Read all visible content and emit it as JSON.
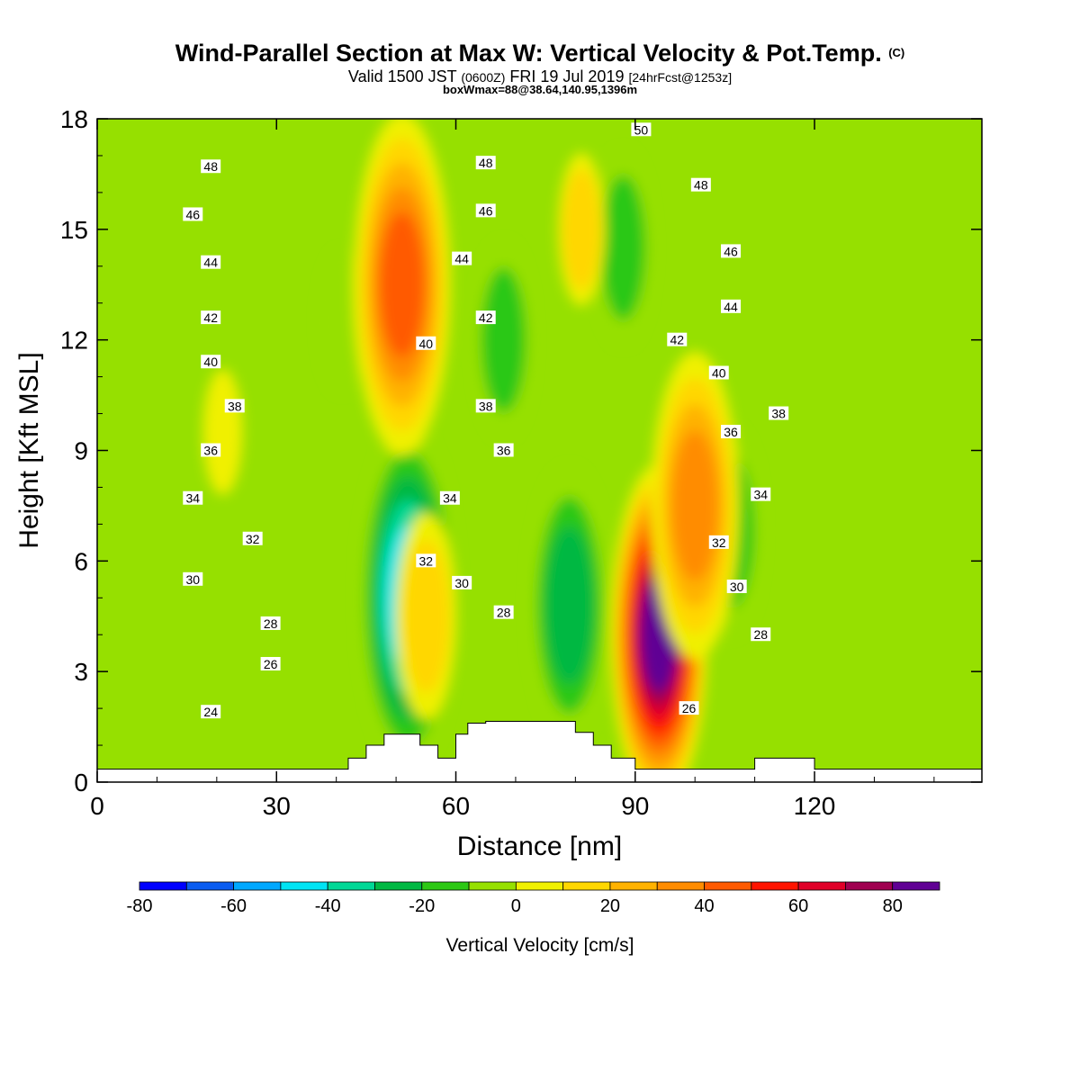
{
  "title": "Wind-Parallel Section at Max W: Vertical Velocity & Pot.Temp.",
  "title_unit": "(C)",
  "subtitle_a": "Valid 1500 JST",
  "subtitle_b": "(0600Z)",
  "subtitle_c": "FRI 19 Jul 2019",
  "subtitle_d": "[24hrFcst@1253z]",
  "subtitle2": "boxWmax=88@38.64,140.95,1396m",
  "chart_data": {
    "type": "heatmap",
    "xlabel": "Distance [nm]",
    "ylabel": "Height [Kft MSL]",
    "xlim": [
      0,
      148
    ],
    "ylim": [
      0,
      18
    ],
    "x_ticks": [
      "0",
      "30",
      "60",
      "90",
      "120"
    ],
    "x_tick_values": [
      0,
      30,
      60,
      90,
      120
    ],
    "y_ticks": [
      "0",
      "3",
      "6",
      "9",
      "12",
      "15",
      "18"
    ],
    "y_tick_values": [
      0,
      3,
      6,
      9,
      12,
      15,
      18
    ],
    "colorbar": {
      "label": "Vertical Velocity [cm/s]",
      "tick_labels": [
        "-80",
        "-60",
        "-40",
        "-20",
        "0",
        "20",
        "40",
        "60",
        "80"
      ],
      "tick_values": [
        -80,
        -60,
        -40,
        -20,
        0,
        20,
        40,
        60,
        80
      ],
      "range": [
        -80,
        90
      ],
      "colors": [
        "#0000ff",
        "#0a5cf0",
        "#00a8ff",
        "#00e4f4",
        "#00d896",
        "#00b843",
        "#2cc814",
        "#96e000",
        "#f0f000",
        "#ffd700",
        "#ffb200",
        "#ff8c00",
        "#ff5a00",
        "#ff1400",
        "#e00028",
        "#a00050",
        "#600094"
      ]
    },
    "updrafts": [
      {
        "x": 94,
        "y": 4.0,
        "w": 84
      },
      {
        "x": 100,
        "y": 7.5,
        "w": 35
      },
      {
        "x": 51,
        "y": 13.5,
        "w": 45
      },
      {
        "x": 55,
        "y": 4.5,
        "w": 20
      },
      {
        "x": 81,
        "y": 15.0,
        "w": 12
      },
      {
        "x": 21,
        "y": 9.5,
        "w": 8
      }
    ],
    "downdrafts": [
      {
        "x": 52,
        "y": 5.0,
        "w": -45
      },
      {
        "x": 79,
        "y": 4.8,
        "w": -30
      },
      {
        "x": 106,
        "y": 6.8,
        "w": -20
      },
      {
        "x": 68,
        "y": 12.0,
        "w": -18
      },
      {
        "x": 88,
        "y": 14.5,
        "w": -18
      },
      {
        "x": 41,
        "y": 12.5,
        "w": -10
      }
    ],
    "theta_labels": [
      {
        "x": 19,
        "y": 1.9,
        "label": "24"
      },
      {
        "x": 29,
        "y": 3.2,
        "label": "26"
      },
      {
        "x": 29,
        "y": 4.3,
        "label": "28"
      },
      {
        "x": 16,
        "y": 5.5,
        "label": "30"
      },
      {
        "x": 26,
        "y": 6.6,
        "label": "32"
      },
      {
        "x": 16,
        "y": 7.7,
        "label": "34"
      },
      {
        "x": 19,
        "y": 9.0,
        "label": "36"
      },
      {
        "x": 23,
        "y": 10.2,
        "label": "38"
      },
      {
        "x": 19,
        "y": 11.4,
        "label": "40"
      },
      {
        "x": 19,
        "y": 12.6,
        "label": "42"
      },
      {
        "x": 19,
        "y": 14.1,
        "label": "44"
      },
      {
        "x": 16,
        "y": 15.4,
        "label": "46"
      },
      {
        "x": 19,
        "y": 16.7,
        "label": "48"
      },
      {
        "x": 55,
        "y": 6.0,
        "label": "32"
      },
      {
        "x": 61,
        "y": 5.4,
        "label": "30"
      },
      {
        "x": 68,
        "y": 4.6,
        "label": "28"
      },
      {
        "x": 59,
        "y": 7.7,
        "label": "34"
      },
      {
        "x": 68,
        "y": 9.0,
        "label": "36"
      },
      {
        "x": 65,
        "y": 10.2,
        "label": "38"
      },
      {
        "x": 55,
        "y": 11.9,
        "label": "40"
      },
      {
        "x": 65,
        "y": 12.6,
        "label": "42"
      },
      {
        "x": 61,
        "y": 14.2,
        "label": "44"
      },
      {
        "x": 65,
        "y": 15.5,
        "label": "46"
      },
      {
        "x": 65,
        "y": 16.8,
        "label": "48"
      },
      {
        "x": 91,
        "y": 17.7,
        "label": "50"
      },
      {
        "x": 101,
        "y": 16.2,
        "label": "48"
      },
      {
        "x": 106,
        "y": 14.4,
        "label": "46"
      },
      {
        "x": 106,
        "y": 12.9,
        "label": "44"
      },
      {
        "x": 97,
        "y": 12.0,
        "label": "42"
      },
      {
        "x": 104,
        "y": 11.1,
        "label": "40"
      },
      {
        "x": 114,
        "y": 10.0,
        "label": "38"
      },
      {
        "x": 106,
        "y": 9.5,
        "label": "36"
      },
      {
        "x": 111,
        "y": 7.8,
        "label": "34"
      },
      {
        "x": 104,
        "y": 6.5,
        "label": "32"
      },
      {
        "x": 107,
        "y": 5.3,
        "label": "30"
      },
      {
        "x": 111,
        "y": 4.0,
        "label": "28"
      },
      {
        "x": 99,
        "y": 2.0,
        "label": "26"
      }
    ],
    "terrain_profile": [
      [
        0,
        0.35
      ],
      [
        42,
        0.35
      ],
      [
        42,
        0.65
      ],
      [
        45,
        0.65
      ],
      [
        45,
        1.0
      ],
      [
        48,
        1.0
      ],
      [
        48,
        1.3
      ],
      [
        54,
        1.3
      ],
      [
        54,
        1.0
      ],
      [
        57,
        1.0
      ],
      [
        57,
        0.65
      ],
      [
        60,
        0.65
      ],
      [
        60,
        1.3
      ],
      [
        62,
        1.3
      ],
      [
        62,
        1.6
      ],
      [
        65,
        1.6
      ],
      [
        65,
        1.65
      ],
      [
        80,
        1.65
      ],
      [
        80,
        1.35
      ],
      [
        83,
        1.35
      ],
      [
        83,
        1.0
      ],
      [
        86,
        1.0
      ],
      [
        86,
        0.65
      ],
      [
        90,
        0.65
      ],
      [
        90,
        0.35
      ],
      [
        92,
        0.35
      ],
      [
        92,
        0.35
      ],
      [
        110,
        0.35
      ],
      [
        110,
        0.65
      ],
      [
        120,
        0.65
      ],
      [
        120,
        0.35
      ],
      [
        148,
        0.35
      ]
    ]
  }
}
